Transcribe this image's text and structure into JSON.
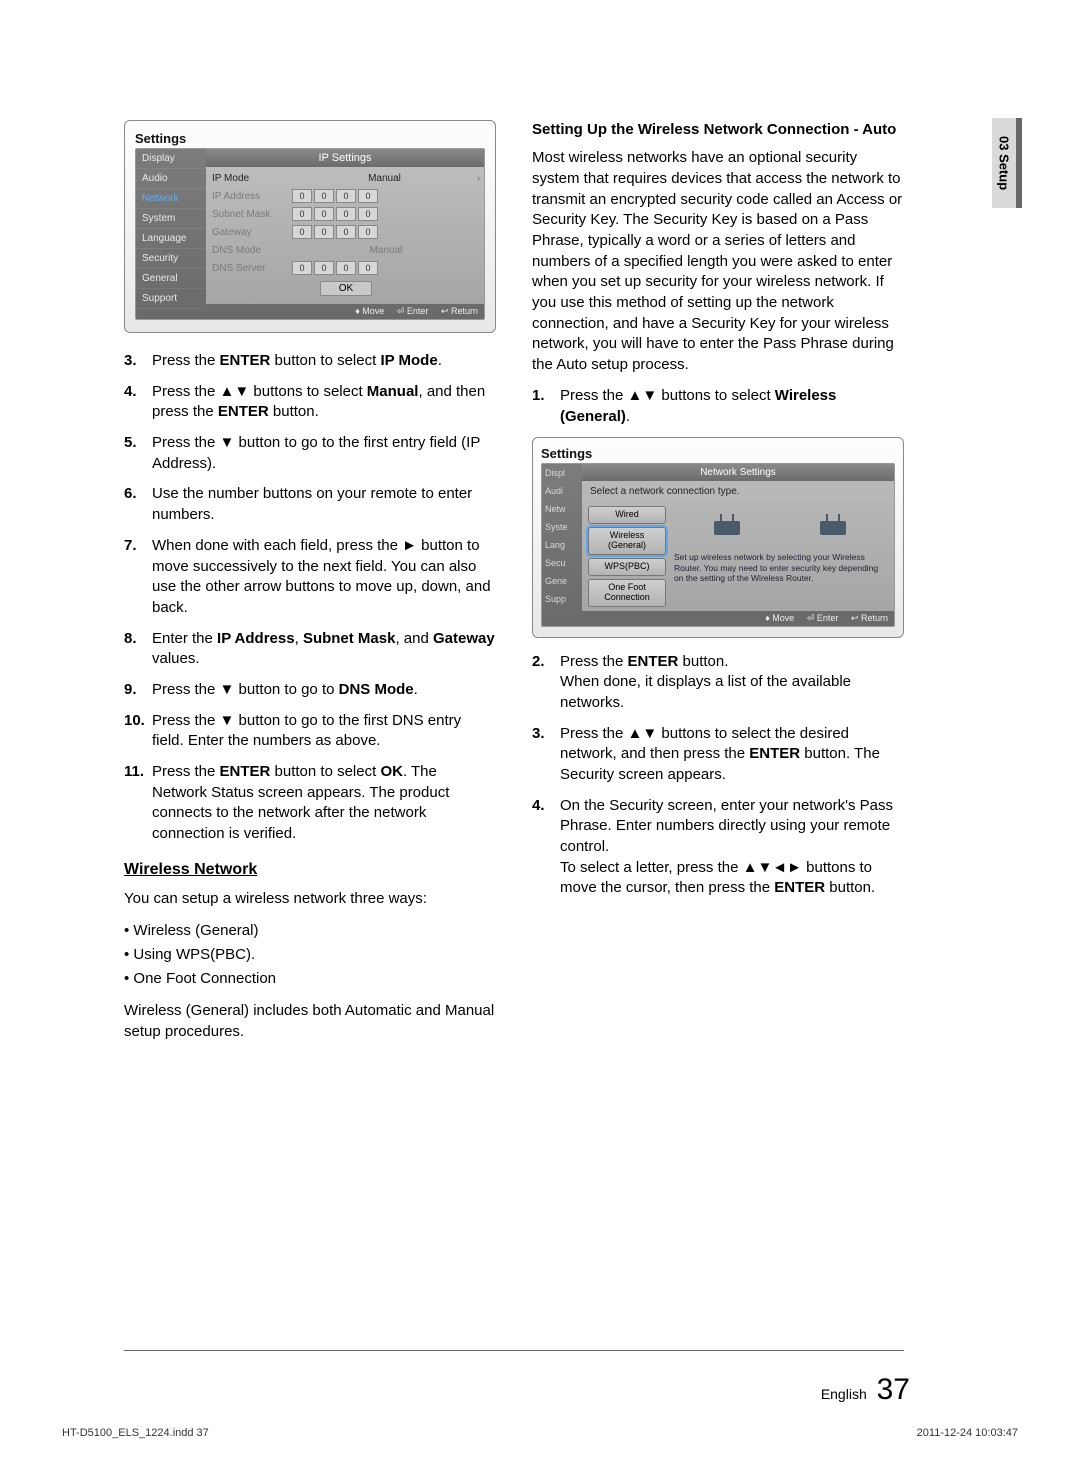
{
  "side_tab": "03  Setup",
  "settings1": {
    "title": "Settings",
    "header": "IP Settings",
    "nav": [
      "Display",
      "Audio",
      "Network",
      "System",
      "Language",
      "Security",
      "General",
      "Support"
    ],
    "nav_active_index": 2,
    "rows": {
      "ip_mode_label": "IP Mode",
      "ip_mode_value": "Manual",
      "ip_address_label": "IP Address",
      "subnet_label": "Subnet Mask",
      "gateway_label": "Gateway",
      "dns_mode_label": "DNS Mode",
      "dns_mode_value": "Manual",
      "dns_server_label": "DNS Server",
      "cell": "0",
      "ok": "OK"
    },
    "footer": {
      "move": "Move",
      "enter": "Enter",
      "return": "Return"
    }
  },
  "left_steps": [
    {
      "n": "3.",
      "t": "Press the <b>ENTER</b> button to select <b>IP Mode</b>."
    },
    {
      "n": "4.",
      "t": "Press the ▲▼ buttons to select <b>Manual</b>, and then press the <b>ENTER</b> button."
    },
    {
      "n": "5.",
      "t": "Press the ▼ button to go to the first entry field (IP Address)."
    },
    {
      "n": "6.",
      "t": "Use the number buttons on your remote to enter numbers."
    },
    {
      "n": "7.",
      "t": "When done with each field, press the ► button to move successively to the next field. You can also use the other arrow buttons to move up, down, and back."
    },
    {
      "n": "8.",
      "t": "Enter the <b>IP Address</b>, <b>Subnet Mask</b>, and <b>Gateway</b> values."
    },
    {
      "n": "9.",
      "t": "Press the ▼ button to go to <b>DNS Mode</b>."
    },
    {
      "n": "10.",
      "t": "Press the ▼ button to go to the first DNS entry field. Enter the numbers as above."
    },
    {
      "n": "11.",
      "t": "Press the <b>ENTER</b> button to select <b>OK</b>. The Network Status screen appears. The product connects to the network after the network connection is verified."
    }
  ],
  "wireless_heading": "Wireless Network",
  "wireless_intro": "You can setup a wireless network three ways:",
  "wireless_bullets": [
    "Wireless (General)",
    "Using WPS(PBC).",
    "One Foot Connection"
  ],
  "wireless_note": "Wireless (General) includes both Automatic and Manual setup procedures.",
  "right": {
    "heading": "Setting Up the Wireless Network Connection - Auto",
    "para": "Most wireless networks have an optional security system that requires devices that access the network to transmit an encrypted security code called an Access or Security Key. The Security Key is based on a Pass Phrase, typically a word or a series of letters and numbers of a specified length you were asked to enter when you set up security for your wireless network. If you use this method of setting up the network connection, and have a Security Key for your wireless network, you will have to enter the Pass Phrase during the Auto setup process.",
    "step1": "Press the ▲▼ buttons to select <b>Wireless (General)</b>.",
    "steps_after": [
      {
        "n": "2.",
        "t": "Press the <b>ENTER</b> button.<br>When done, it displays a list of the available networks."
      },
      {
        "n": "3.",
        "t": "Press the ▲▼ buttons to select the desired network, and then press the <b>ENTER</b> button. The Security screen appears."
      },
      {
        "n": "4.",
        "t": "On the Security screen, enter your network's Pass Phrase. Enter numbers directly using your remote control.<br>To select a letter, press the ▲▼◄► buttons to move the cursor, then press the <b>ENTER</b> button."
      }
    ]
  },
  "settings2": {
    "title": "Settings",
    "header": "Network Settings",
    "select_text": "Select a network connection type.",
    "nav": [
      "Displ",
      "Audi",
      "Netw",
      "Syste",
      "Lang",
      "Secu",
      "Gene",
      "Supp"
    ],
    "conn_types": [
      "Wired",
      "Wireless (General)",
      "WPS(PBC)",
      "One Foot Connection"
    ],
    "conn_selected_index": 1,
    "desc": "Set up wireless network by selecting your Wireless Router. You may need to enter security key depending on the setting of the Wireless Router.",
    "footer": {
      "move": "Move",
      "enter": "Enter",
      "return": "Return"
    }
  },
  "page_foot": {
    "lang": "English",
    "num": "37"
  },
  "footer_line": {
    "left": "HT-D5100_ELS_1224.indd   37",
    "right": "2011-12-24    10:03:47"
  },
  "colors": {
    "nav_active": "#5bb0ff"
  }
}
